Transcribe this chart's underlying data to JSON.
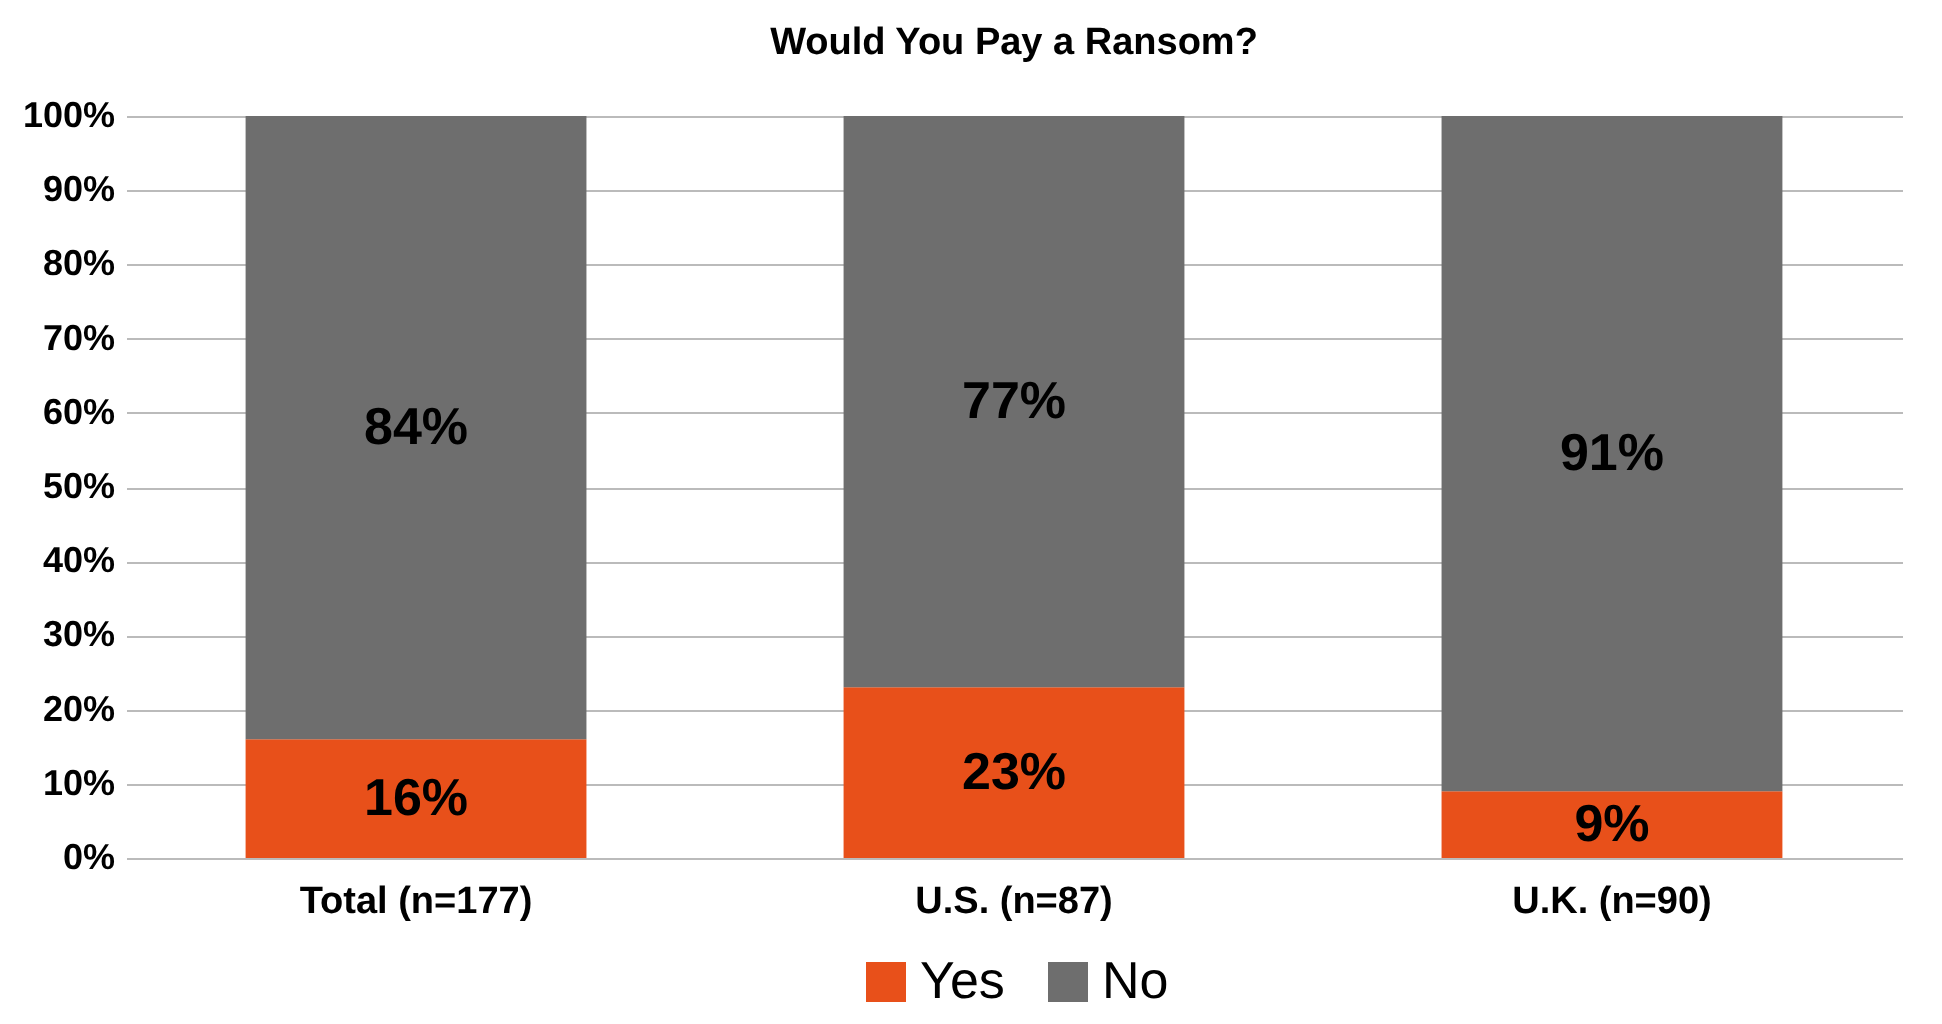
{
  "chart_data": {
    "type": "bar",
    "title": "Would You Pay a Ransom?",
    "categories": [
      "Total (n=177)",
      "U.S. (n=87)",
      "U.K. (n=90)"
    ],
    "series": [
      {
        "name": "Yes",
        "color": "#e8501a",
        "values": [
          16,
          23,
          9
        ]
      },
      {
        "name": "No",
        "color": "#6e6e6e",
        "values": [
          84,
          77,
          91
        ]
      }
    ],
    "stacked": true,
    "ylim": [
      0,
      100
    ],
    "yticks": [
      {
        "value": 0,
        "label": "0%"
      },
      {
        "value": 10,
        "label": "10%"
      },
      {
        "value": 20,
        "label": "20%"
      },
      {
        "value": 30,
        "label": "30%"
      },
      {
        "value": 40,
        "label": "40%"
      },
      {
        "value": 50,
        "label": "50%"
      },
      {
        "value": 60,
        "label": "60%"
      },
      {
        "value": 70,
        "label": "70%"
      },
      {
        "value": 80,
        "label": "80%"
      },
      {
        "value": 90,
        "label": "90%"
      },
      {
        "value": 100,
        "label": "100%"
      }
    ],
    "value_labels": [
      "16%",
      "23%",
      "9%",
      "84%",
      "77%",
      "91%"
    ],
    "grid": "y",
    "legend": "bottom"
  }
}
